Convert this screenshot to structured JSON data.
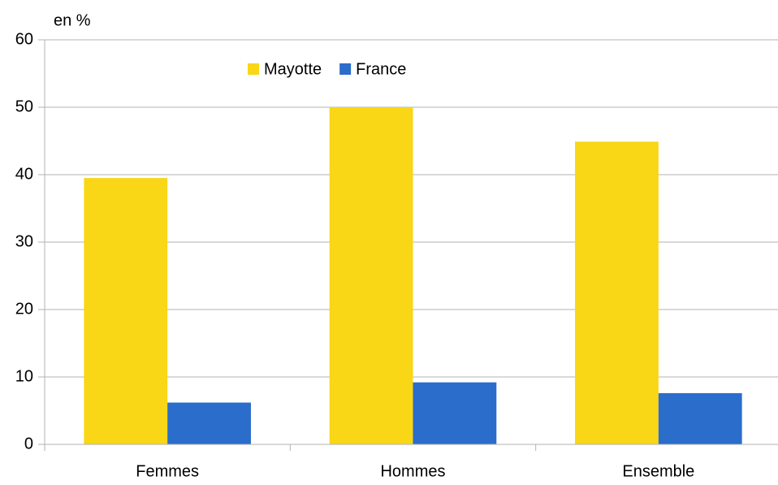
{
  "chart_data": {
    "type": "bar",
    "y_label": "en %",
    "categories": [
      "Femmes",
      "Hommes",
      "Ensemble"
    ],
    "series": [
      {
        "name": "Mayotte",
        "color": "#f9d616",
        "values": [
          39.5,
          50,
          44.9
        ]
      },
      {
        "name": "France",
        "color": "#2a6dcb",
        "values": [
          6.2,
          9.2,
          7.6
        ]
      }
    ],
    "ylim": [
      0,
      60
    ],
    "yticks": [
      0,
      10,
      20,
      30,
      40,
      50,
      60
    ],
    "grid": true,
    "legend": "top"
  }
}
